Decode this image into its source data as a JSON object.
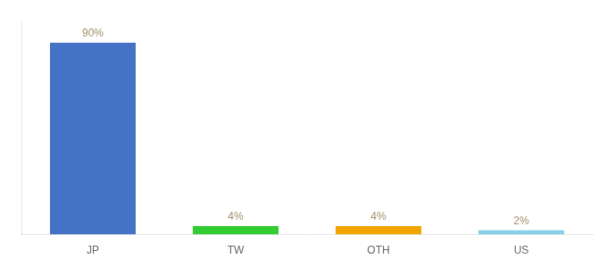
{
  "chart_data": {
    "type": "bar",
    "categories": [
      "JP",
      "TW",
      "OTH",
      "US"
    ],
    "values": [
      90,
      4,
      4,
      2
    ],
    "value_labels": [
      "90%",
      "4%",
      "4%",
      "2%"
    ],
    "colors": [
      "#4472c4",
      "#33cc33",
      "#f0a500",
      "#87ceeb"
    ],
    "ylim": [
      0,
      100
    ],
    "grid": false,
    "data_labels": true,
    "tick_labels": "x"
  }
}
